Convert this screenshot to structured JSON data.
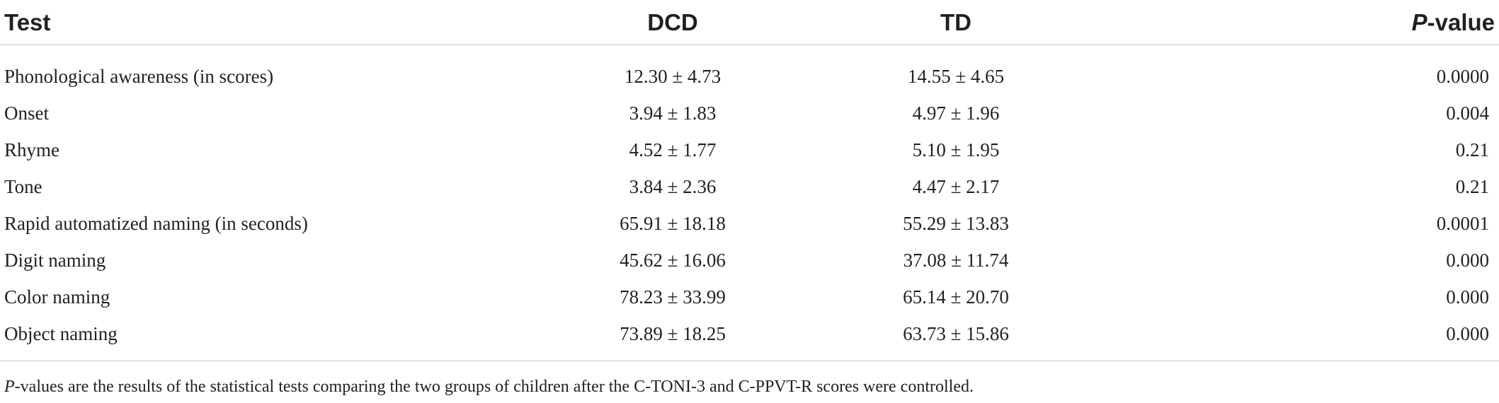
{
  "table": {
    "headers": {
      "test": "Test",
      "dcd": "DCD",
      "td": "TD",
      "p_italic": "P",
      "p_rest": "-value"
    },
    "rows": [
      {
        "test": "Phonological awareness (in scores)",
        "dcd": "12.30 ± 4.73",
        "td": "14.55 ± 4.65",
        "p": "0.0000"
      },
      {
        "test": "Onset",
        "dcd": "3.94 ± 1.83",
        "td": "4.97 ± 1.96",
        "p": "0.004"
      },
      {
        "test": "Rhyme",
        "dcd": "4.52 ± 1.77",
        "td": "5.10 ± 1.95",
        "p": "0.21"
      },
      {
        "test": "Tone",
        "dcd": "3.84 ± 2.36",
        "td": "4.47 ± 2.17",
        "p": "0.21"
      },
      {
        "test": "Rapid automatized naming (in seconds)",
        "dcd": "65.91 ± 18.18",
        "td": "55.29 ± 13.83",
        "p": "0.0001"
      },
      {
        "test": "Digit naming",
        "dcd": "45.62 ± 16.06",
        "td": "37.08 ± 11.74",
        "p": "0.000"
      },
      {
        "test": "Color naming",
        "dcd": "78.23 ± 33.99",
        "td": "65.14 ± 20.70",
        "p": "0.000"
      },
      {
        "test": "Object naming",
        "dcd": "73.89 ± 18.25",
        "td": "63.73 ± 15.86",
        "p": "0.000"
      }
    ]
  },
  "footnote": {
    "italic": "P",
    "rest": "-values are the results of the statistical tests comparing the two groups of children after the C-TONI-3 and C-PPVT-R scores were controlled."
  }
}
